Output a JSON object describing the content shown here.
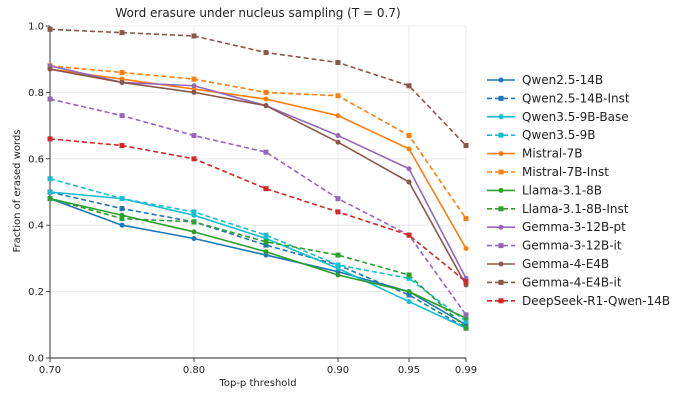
{
  "chart_data": {
    "type": "line",
    "title": "Word erasure under nucleus sampling (T = 0.7)",
    "xlabel": "Top-p threshold",
    "ylabel": "Fraction of erased words",
    "x": [
      "0.70",
      "0.75",
      "0.80",
      "0.85",
      "0.90",
      "0.95",
      "0.99"
    ],
    "x_tick_labels": [
      "0.70",
      "0.80",
      "0.90",
      "0.95",
      "0.99"
    ],
    "y_tick_labels": [
      "0.0",
      "0.2",
      "0.4",
      "0.6",
      "0.8",
      "1.0"
    ],
    "ylim": [
      0,
      1.0
    ],
    "grid": true,
    "legend_position": "right",
    "series": [
      {
        "name": "Qwen2.5-14B",
        "color": "#1f77b4",
        "dashed": false,
        "values": [
          0.48,
          0.4,
          0.36,
          0.31,
          0.26,
          0.2,
          0.1
        ]
      },
      {
        "name": "Qwen2.5-14B-Inst",
        "color": "#1f77b4",
        "dashed": true,
        "values": [
          0.5,
          0.45,
          0.41,
          0.34,
          0.28,
          0.19,
          0.09
        ]
      },
      {
        "name": "Qwen3.5-9B-Base",
        "color": "#17becf",
        "dashed": false,
        "values": [
          0.5,
          0.48,
          0.43,
          0.36,
          0.27,
          0.17,
          0.09
        ]
      },
      {
        "name": "Qwen3.5-9B",
        "color": "#17becf",
        "dashed": true,
        "values": [
          0.54,
          0.48,
          0.44,
          0.37,
          0.28,
          0.24,
          0.11
        ]
      },
      {
        "name": "Mistral-7B",
        "color": "#ff7f0e",
        "dashed": false,
        "values": [
          0.87,
          0.84,
          0.81,
          0.78,
          0.73,
          0.63,
          0.33
        ]
      },
      {
        "name": "Mistral-7B-Inst",
        "color": "#ff7f0e",
        "dashed": true,
        "values": [
          0.88,
          0.86,
          0.84,
          0.8,
          0.79,
          0.67,
          0.42
        ]
      },
      {
        "name": "Llama-3.1-8B",
        "color": "#2ca02c",
        "dashed": false,
        "values": [
          0.48,
          0.43,
          0.38,
          0.32,
          0.25,
          0.2,
          0.12
        ]
      },
      {
        "name": "Llama-3.1-8B-Inst",
        "color": "#2ca02c",
        "dashed": true,
        "values": [
          0.48,
          0.42,
          0.41,
          0.35,
          0.31,
          0.25,
          0.09
        ]
      },
      {
        "name": "Gemma-3-12B-pt",
        "color": "#9467bd",
        "dashed": false,
        "values": [
          0.88,
          0.83,
          0.82,
          0.76,
          0.67,
          0.57,
          0.24
        ]
      },
      {
        "name": "Gemma-3-12B-it",
        "color": "#9467bd",
        "dashed": true,
        "values": [
          0.78,
          0.73,
          0.67,
          0.62,
          0.48,
          0.37,
          0.13
        ]
      },
      {
        "name": "Gemma-4-E4B",
        "color": "#8c564b",
        "dashed": false,
        "values": [
          0.87,
          0.83,
          0.8,
          0.76,
          0.65,
          0.53,
          0.22
        ]
      },
      {
        "name": "Gemma-4-E4B-it",
        "color": "#8c564b",
        "dashed": true,
        "values": [
          0.99,
          0.98,
          0.97,
          0.92,
          0.89,
          0.82,
          0.64
        ]
      },
      {
        "name": "DeepSeek-R1-Qwen-14B",
        "color": "#d62728",
        "dashed": true,
        "values": [
          0.66,
          0.64,
          0.6,
          0.51,
          0.44,
          0.37,
          0.23
        ]
      }
    ]
  }
}
